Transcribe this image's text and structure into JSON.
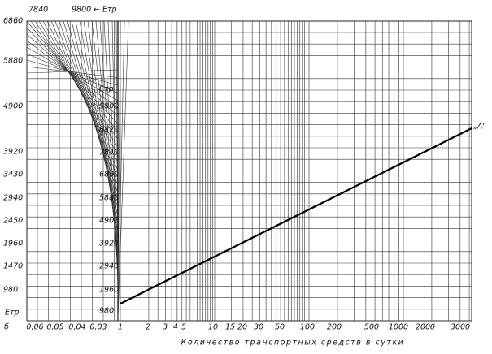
{
  "top_axis": [
    "7840",
    "9800"
  ],
  "top_axis_title": "← Eтр",
  "left_axis": [
    "6860",
    "5880",
    "4900",
    "3920",
    "3430",
    "2940",
    "2450",
    "1960",
    "1470",
    "980"
  ],
  "left_axis_title": "Eтр",
  "mid_axis_title": "Eтр",
  "mid_axis": [
    "9800",
    "8820",
    "7840",
    "6860",
    "5880",
    "4900",
    "3920",
    "2940",
    "1960",
    "980"
  ],
  "bottom_axis": [
    "б",
    "0,06",
    "0,05",
    "0,04",
    "0,03",
    "1",
    "2",
    "3",
    "4",
    "5",
    "10",
    "15",
    "20",
    "30",
    "50",
    "100",
    "200",
    "500",
    "1000",
    "2000",
    "3000"
  ],
  "x_axis_title": "Количество транспортных средств в сутки",
  "line_label": "„A\""
}
